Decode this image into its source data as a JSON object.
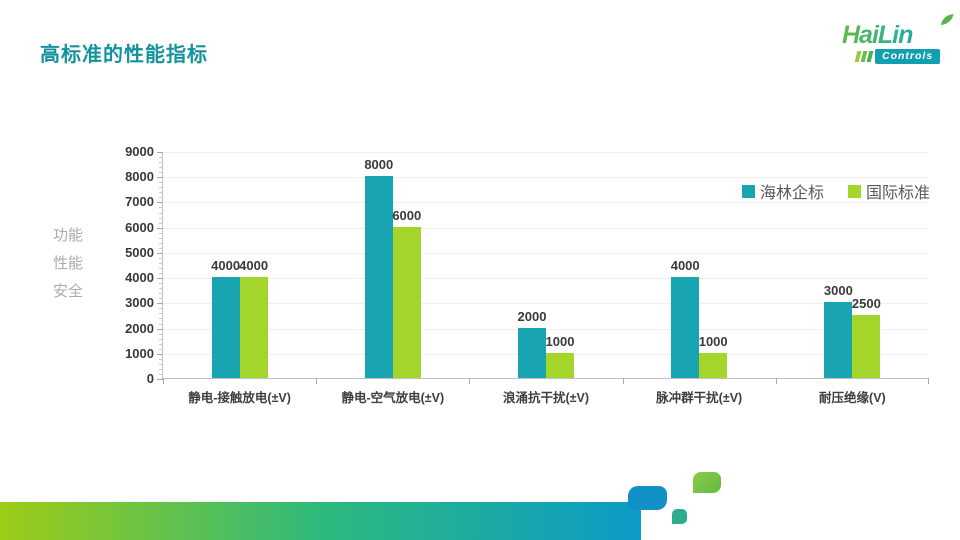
{
  "slide": {
    "title": "高标准的性能指标",
    "background": "#FFFFFF",
    "title_color": "#14939F"
  },
  "logo": {
    "name": "HaiLin",
    "sub": "Controls",
    "leaf_icon_color": "#54B848",
    "gradient_left": "#62BB46",
    "gradient_right": "#1E93D2",
    "sub_box_color": "#129FB2"
  },
  "side_labels": [
    "功能",
    "性能",
    "安全"
  ],
  "chart_data": {
    "type": "bar",
    "title": "",
    "xlabel": "",
    "ylabel": "",
    "categories": [
      "静电-接触放电(±V)",
      "静电-空气放电(±V)",
      "浪涌抗干扰(±V)",
      "脉冲群干扰(±V)",
      "耐压绝缘(V)"
    ],
    "series": [
      {
        "name": "海林企标",
        "color": "#18A4B0",
        "values": [
          4000,
          8000,
          2000,
          4000,
          3000
        ]
      },
      {
        "name": "国际标准",
        "color": "#A4D52B",
        "values": [
          4000,
          6000,
          1000,
          1000,
          2500
        ]
      }
    ],
    "ylim": [
      0,
      9000
    ],
    "ytick_step": 1000,
    "yminor_step": 200,
    "grid": true,
    "legend_position": "top-right",
    "gridline_color": "#EFEFEF",
    "axis_color": "#C1C1C1",
    "label_color": "#3A3A3A"
  },
  "decoration": {
    "bar_gradient": [
      "#9ECC16",
      "#2EB97C",
      "#0B9CC8"
    ],
    "blue_square": "#1291C8",
    "small_square": "#2BAE8C",
    "green_square": "#6FBF45"
  }
}
